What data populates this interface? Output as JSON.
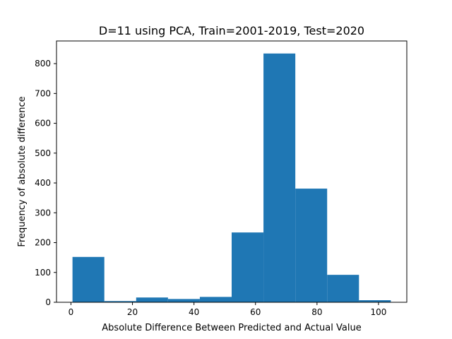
{
  "chart_data": {
    "type": "bar",
    "title": "D=11 using PCA, Train=2001-2019, Test=2020",
    "xlabel": "Absolute Difference Between Predicted and Actual Value",
    "ylabel": "Frequency of absolute difference",
    "bin_edges": [
      0.5,
      10.85,
      21.2,
      31.55,
      41.9,
      52.25,
      62.6,
      72.95,
      83.3,
      93.65,
      104.0
    ],
    "values": [
      152,
      4,
      16,
      11,
      18,
      234,
      834,
      381,
      92,
      7
    ],
    "xlim": [
      -4.7,
      109.2
    ],
    "ylim": [
      0,
      876
    ],
    "xticks": [
      0,
      20,
      40,
      60,
      80,
      100
    ],
    "yticks": [
      0,
      100,
      200,
      300,
      400,
      500,
      600,
      700,
      800
    ],
    "bar_color": "#1f77b4",
    "grid": false,
    "legend": "none"
  }
}
